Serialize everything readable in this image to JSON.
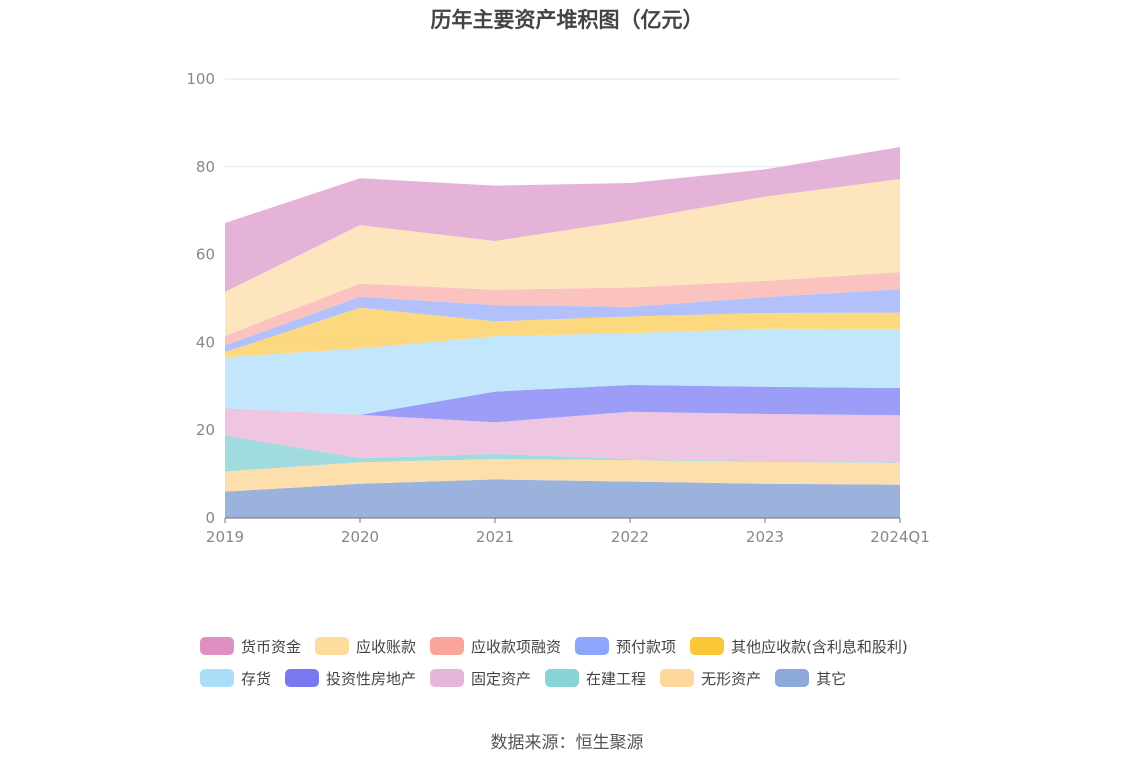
{
  "title": "历年主要资产堆积图（亿元）",
  "source": "数据来源：恒生聚源",
  "chart_data": {
    "type": "area",
    "stacked": true,
    "title": "历年主要资产堆积图（亿元）",
    "categories": [
      "2019",
      "2020",
      "2021",
      "2022",
      "2023",
      "2024Q1"
    ],
    "ylim": [
      0,
      100
    ],
    "yticks": [
      0,
      20,
      40,
      60,
      80,
      100
    ],
    "grid": true,
    "legend_position": "bottom",
    "series": [
      {
        "name": "其它",
        "color": "#8aa6d6",
        "values": [
          6.0,
          7.8,
          8.8,
          8.3,
          7.8,
          7.6
        ]
      },
      {
        "name": "无形资产",
        "color": "#fdd9a0",
        "values": [
          4.6,
          4.9,
          4.6,
          4.9,
          5.0,
          4.9
        ]
      },
      {
        "name": "在建工程",
        "color": "#8fd6d8",
        "values": [
          8.2,
          0.9,
          1.2,
          0.2,
          0.2,
          0.1
        ]
      },
      {
        "name": "固定资产",
        "color": "#ecbcdc",
        "values": [
          6.2,
          9.9,
          7.2,
          10.8,
          10.7,
          10.8
        ]
      },
      {
        "name": "投资性房地产",
        "color": "#8a8cf5",
        "values": [
          0.0,
          0.0,
          7.0,
          6.1,
          6.2,
          6.2
        ]
      },
      {
        "name": "存货",
        "color": "#b7e2fb",
        "values": [
          11.6,
          15.1,
          12.6,
          11.8,
          13.2,
          13.4
        ]
      },
      {
        "name": "其他应收款(含利息和股利)",
        "color": "#fcd169",
        "values": [
          1.2,
          9.3,
          3.4,
          3.8,
          3.6,
          3.8
        ]
      },
      {
        "name": "预付款项",
        "color": "#a4b6fc",
        "values": [
          1.5,
          2.5,
          3.7,
          2.2,
          3.6,
          5.3
        ]
      },
      {
        "name": "应收款项融资",
        "color": "#fab9b4",
        "values": [
          2.2,
          3.0,
          3.5,
          4.4,
          3.7,
          3.9
        ]
      },
      {
        "name": "应收账款",
        "color": "#fde1b3",
        "values": [
          10.0,
          13.3,
          11.1,
          15.3,
          19.2,
          21.2
        ]
      },
      {
        "name": "货币资金",
        "color": "#e1a6d0",
        "values": [
          15.7,
          10.7,
          12.6,
          8.5,
          6.2,
          7.3
        ]
      }
    ],
    "legend_order": [
      "货币资金",
      "应收账款",
      "应收款项融资",
      "预付款项",
      "其他应收款(含利息和股利)",
      "存货",
      "投资性房地产",
      "固定资产",
      "在建工程",
      "无形资产",
      "其它"
    ],
    "legend_colors": {
      "货币资金": "#de8fc4",
      "应收账款": "#fedc9c",
      "应收款项融资": "#faa49c",
      "预付款项": "#8ca6fb",
      "其他应收款(含利息和股利)": "#fcc639",
      "存货": "#a9ddf8",
      "投资性房地产": "#7a78f0",
      "固定资产": "#e6b6d9",
      "在建工程": "#86d4d6",
      "无形资产": "#fed79c",
      "其它": "#8da9d9"
    }
  }
}
